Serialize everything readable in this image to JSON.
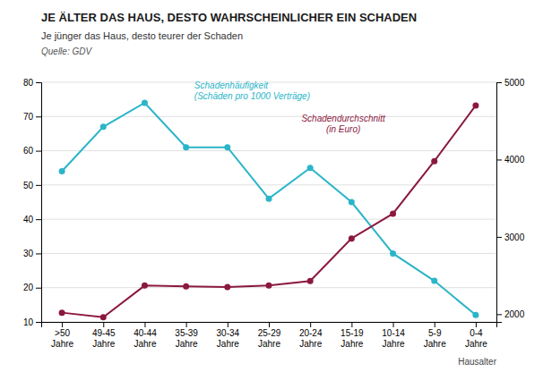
{
  "chart_data": {
    "type": "line",
    "title": "JE ÄLTER DAS HAUS, DESTO WAHRSCHEINLICHER EIN SCHADEN",
    "subtitle": "Je jünger das Haus, desto teurer der Schaden",
    "source": "Quelle: GDV",
    "xlabel": "Hausalter",
    "categories": [
      ">50\nJahre",
      "49-45\nJahre",
      "40-44\nJahre",
      "35-39\nJahre",
      "30-34\nJahre",
      "25-29\nJahre",
      "20-24\nJahre",
      "15-19\nJahre",
      "10-14\nJahre",
      "5-9\nJahre",
      "0-4\nJahre"
    ],
    "series": [
      {
        "name": "Schadenhäufigkeit\n(Schäden pro 1000 Verträge)",
        "color": "#2bb5c8",
        "marker": "circle",
        "values": [
          54,
          67,
          74,
          61,
          61,
          46,
          55,
          45,
          30,
          22,
          12
        ]
      },
      {
        "name": "Schadendurchschnitt\n(in Euro)",
        "color": "#8b1840",
        "marker": "circle",
        "axis": "y2",
        "values": [
          2020,
          1960,
          2370,
          2360,
          2350,
          2370,
          2430,
          2980,
          3300,
          3980,
          4700
        ]
      }
    ],
    "ylim": [
      10,
      80
    ],
    "yticks": [
      10,
      20,
      30,
      40,
      50,
      60,
      70,
      80
    ],
    "y2lim": [
      1900,
      5000
    ],
    "y2ticks": [
      2000,
      3000,
      4000,
      5000
    ],
    "grid": true
  }
}
